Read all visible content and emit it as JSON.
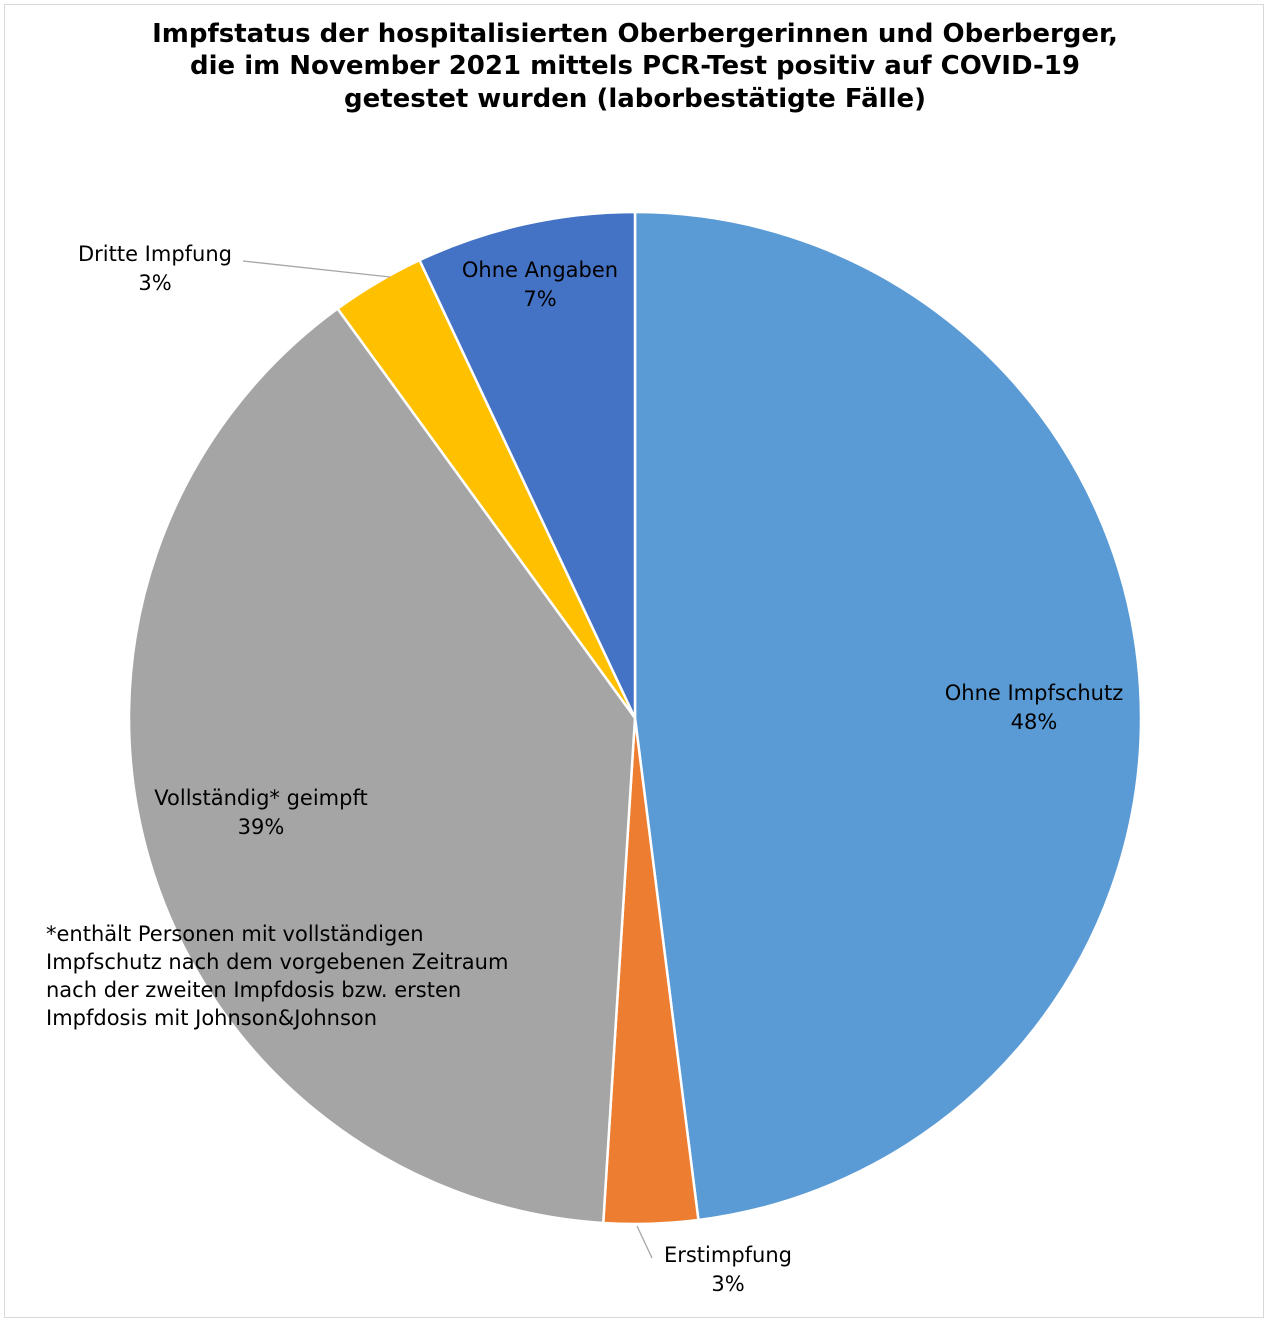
{
  "chart_data": {
    "type": "pie",
    "title_lines": [
      "Impfstatus der hospitalisierten Oberbergerinnen und Oberberger,",
      "die im November 2021 mittels PCR-Test positiv auf COVID-19",
      "getestet wurden (laborbestätigte Fälle)"
    ],
    "slices": [
      {
        "label": "Ohne Impfschutz",
        "value": 48,
        "value_label": "48%",
        "color": "#5b9bd5"
      },
      {
        "label": "Erstimpfung",
        "value": 3,
        "value_label": "3%",
        "color": "#ed7d31"
      },
      {
        "label": "Vollständig* geimpft",
        "value": 39,
        "value_label": "39%",
        "color": "#a5a5a5"
      },
      {
        "label": "Dritte Impfung",
        "value": 3,
        "value_label": "3%",
        "color": "#ffc000"
      },
      {
        "label": "Ohne Angaben",
        "value": 7,
        "value_label": "7%",
        "color": "#4472c4"
      }
    ],
    "start": "12 o'clock",
    "direction": "clockwise",
    "legend": "none",
    "footnote_lines": [
      "*enthält Personen mit vollständigen",
      "Impfschutz nach dem vorgebenen Zeitraum",
      "nach der zweiten Impfdosis bzw. ersten",
      "Impfdosis mit Johnson&Johnson"
    ]
  }
}
